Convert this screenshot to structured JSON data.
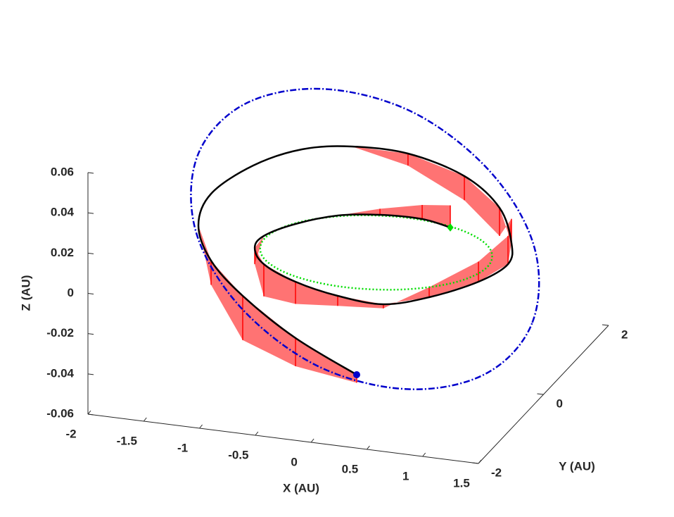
{
  "chart_data": {
    "type": "line3d",
    "xlabel": "X (AU)",
    "ylabel": "Y (AU)",
    "zlabel": "Z (AU)",
    "xlim": [
      -2,
      1.5
    ],
    "ylim": [
      -2,
      2
    ],
    "zlim": [
      -0.06,
      0.06
    ],
    "xticks": [
      -2,
      -1.5,
      -1,
      -0.5,
      0,
      0.5,
      1,
      1.5
    ],
    "yticks": [
      -2,
      0,
      2
    ],
    "zticks": [
      -0.06,
      -0.04,
      -0.02,
      0,
      0.02,
      0.04,
      0.06
    ],
    "series": [
      {
        "color": "#0000cc",
        "line_style": "dashdot",
        "closed": true,
        "x": [
          1.4,
          1.2,
          0.65,
          -0.1,
          -0.85,
          -1.4,
          -1.6,
          -1.4,
          -0.85,
          -0.1,
          0.65,
          1.2
        ],
        "y": [
          0,
          0.75,
          1.3,
          1.5,
          1.3,
          0.75,
          0,
          -0.75,
          -1.3,
          -1.5,
          -1.3,
          -0.75
        ],
        "z": [
          -0.025,
          -0.002,
          0.022,
          0.043,
          0.053,
          0.051,
          0.037,
          0.014,
          -0.01,
          -0.031,
          -0.041,
          -0.039
        ]
      },
      {
        "color": "#00dd00",
        "line_style": "dotted",
        "closed": true,
        "x": [
          1,
          0.866,
          0.5,
          0,
          -0.5,
          -0.866,
          -1,
          -0.866,
          -0.5,
          0,
          0.5,
          0.866
        ],
        "y": [
          0,
          0.5,
          0.866,
          1,
          0.866,
          0.5,
          0,
          -0.5,
          -0.866,
          -1,
          -0.866,
          -0.5
        ],
        "z": [
          0,
          0,
          0,
          0,
          0,
          0,
          0,
          0,
          0,
          0,
          0,
          0
        ]
      },
      {
        "color": "#000000",
        "line_style": "solid",
        "closed": false,
        "x": [
          0.405,
          0.116,
          -0.254,
          -0.587,
          -0.862,
          -1.025,
          -1.007,
          -0.812,
          -0.425,
          0.019,
          0.449,
          0.793,
          1.101,
          1.235,
          1.126,
          0.833,
          0.388,
          -0.173,
          -0.646,
          -1.02,
          -1.368,
          -1.614,
          -1.592,
          -1.352,
          -0.97,
          -0.38,
          0.25
        ],
        "y": [
          0.89,
          1.017,
          0.988,
          0.832,
          0.475,
          0.061,
          -0.279,
          -0.668,
          -1.021,
          -1.247,
          -1.317,
          -1.089,
          -0.63,
          -0.182,
          0.298,
          0.936,
          1.381,
          1.572,
          1.467,
          1.233,
          0.913,
          0.462,
          -0.005,
          -0.438,
          -0.775,
          -1.175,
          -1.455
        ],
        "z": [
          0,
          0,
          0,
          0,
          0,
          0,
          0,
          0,
          0,
          0,
          0,
          0.002,
          0.004,
          0.006,
          0.0075,
          0.012,
          0.017,
          0.021,
          0.023,
          0.023,
          0.018,
          0.01,
          0.0024,
          -0.006,
          -0.015,
          -0.025,
          -0.034
        ],
        "thrust_color": "#ff0000",
        "thrust_dz": [
          0.011,
          0.007,
          0.003,
          0,
          0,
          0,
          -0.008,
          -0.016,
          -0.011,
          -0.005,
          -0.002,
          0.005,
          0.01,
          0.014,
          0.012,
          -0.014,
          -0.012,
          -0.006,
          0,
          0,
          0,
          0,
          0,
          -0.012,
          -0.022,
          -0.014,
          -0.004
        ]
      }
    ],
    "markers": [
      {
        "x": 0.405,
        "y": 0.89,
        "z": 0,
        "color": "#00dd00",
        "shape": "diamond"
      },
      {
        "x": 0.25,
        "y": -1.455,
        "z": -0.034,
        "color": "#0000cc",
        "shape": "circle"
      }
    ]
  }
}
